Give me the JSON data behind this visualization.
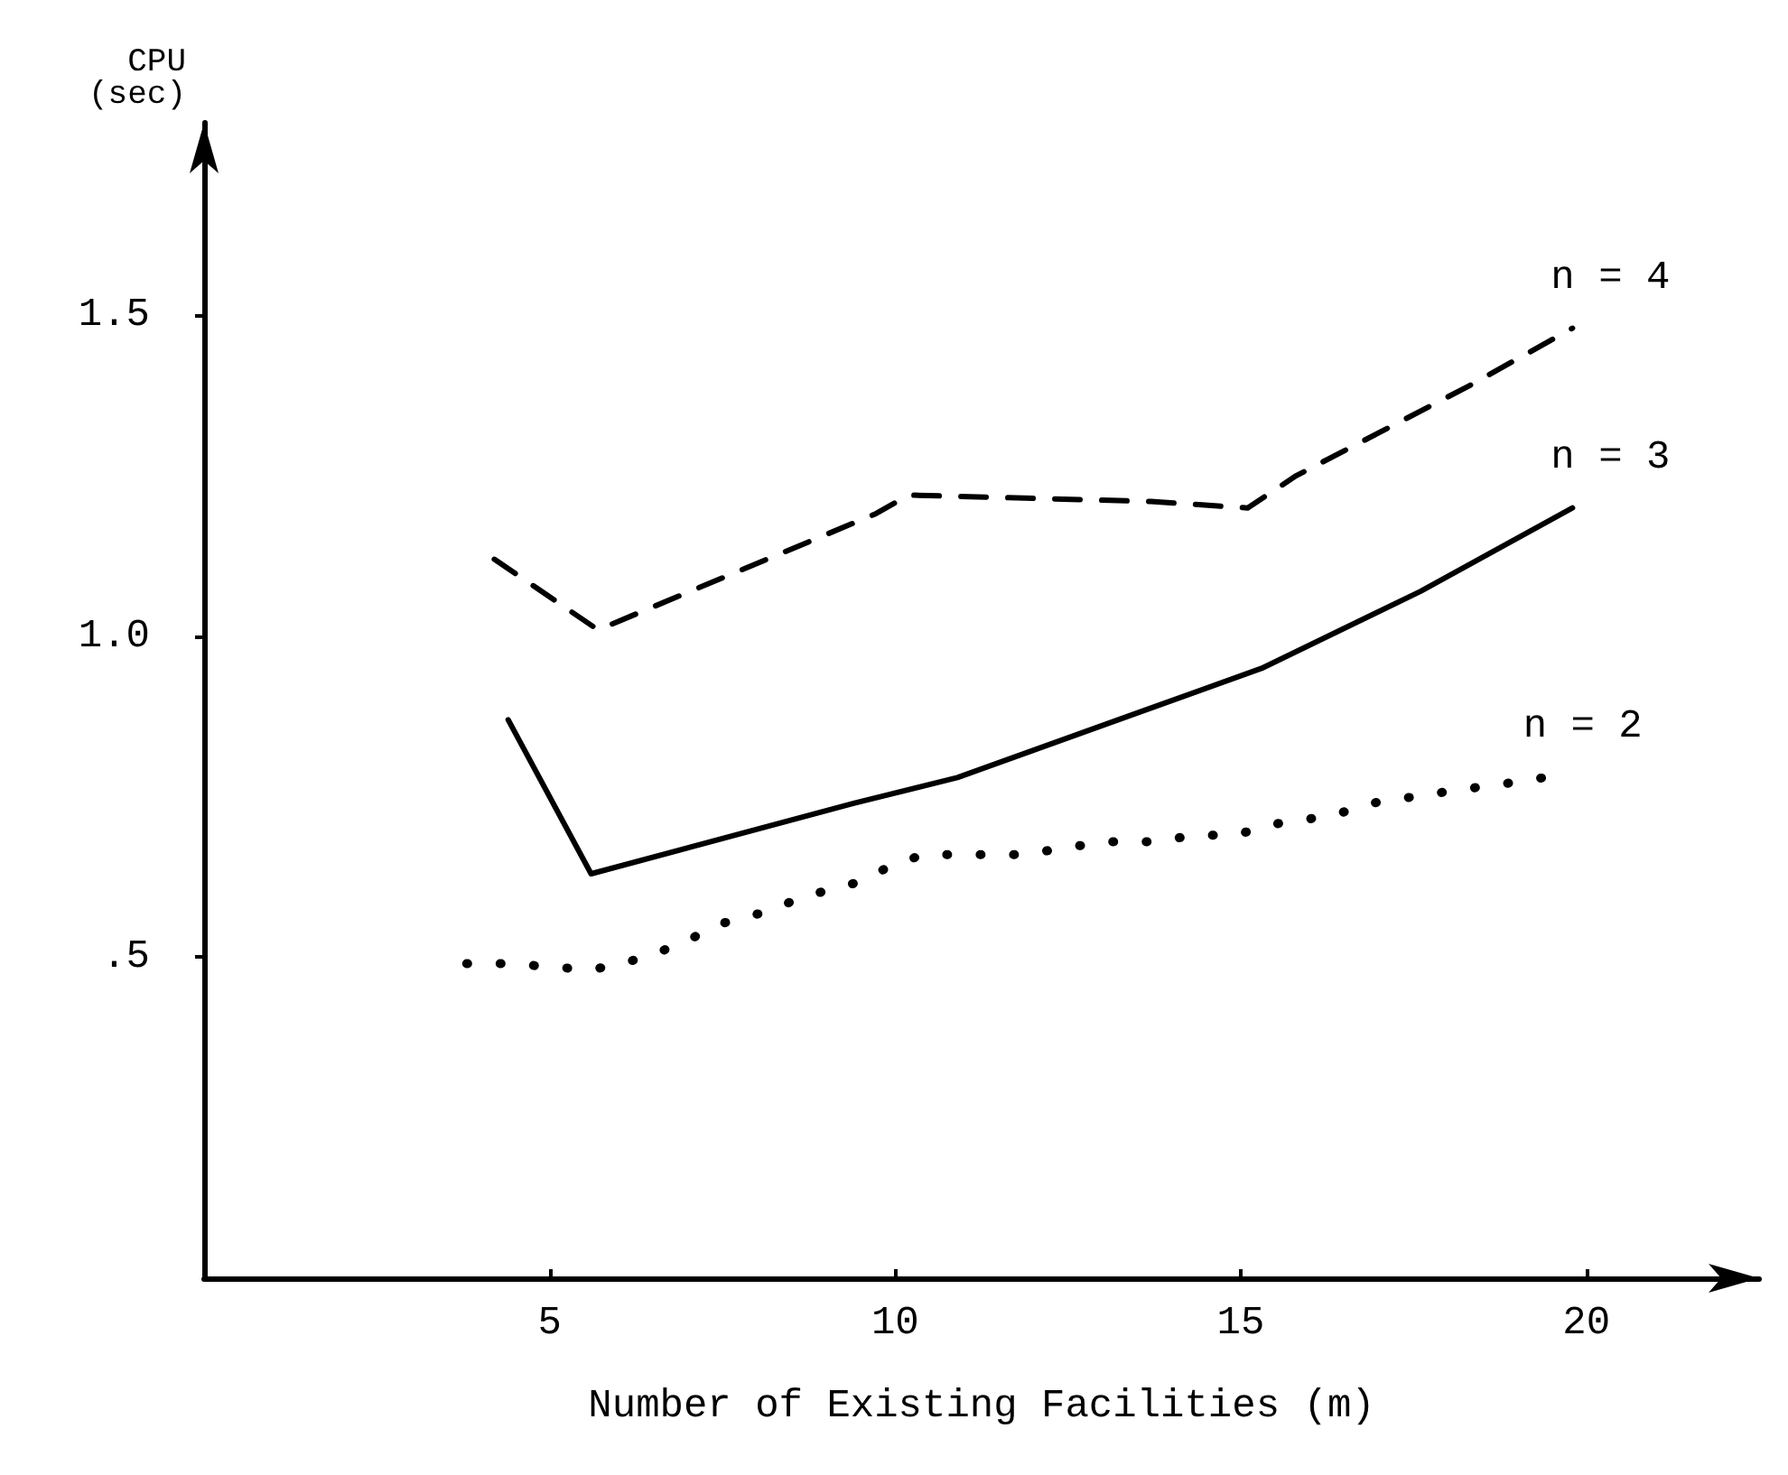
{
  "chart_data": {
    "type": "line",
    "xlabel": "Number of Existing Facilities (m)",
    "ylabel": "CPU\n(sec)",
    "xlim": [
      0,
      22.5
    ],
    "xticks": [
      5,
      10,
      15,
      20
    ],
    "ylim": [
      0,
      1.8
    ],
    "yticks": [
      {
        "value": 0.5,
        "label": ".5"
      },
      {
        "value": 1,
        "label": "1.0"
      },
      1.5
    ],
    "grid": false,
    "legend": false,
    "marker": "none",
    "series": [
      {
        "name": "n = 4",
        "color": "#000000",
        "line_style": "dashed",
        "x": [
          4.2,
          5.7,
          9.7,
          10.2,
          13.7,
          15.1,
          15.8,
          18.3,
          19.8
        ],
        "values": [
          1.12,
          1.01,
          1.19,
          1.22,
          1.21,
          1.2,
          1.25,
          1.39,
          1.48
        ]
      },
      {
        "name": "n = 3",
        "color": "#000000",
        "line_style": "solid",
        "x": [
          4.4,
          5.6,
          9.4,
          10.9,
          15.3,
          17.6,
          19.8
        ],
        "values": [
          0.87,
          0.63,
          0.74,
          0.78,
          0.95,
          1.07,
          1.2
        ]
      },
      {
        "name": "n = 2",
        "color": "#000000",
        "line_style": "dotted",
        "x": [
          3.8,
          4.4,
          5.05,
          5.6,
          6.2,
          6.9,
          7.4,
          8.1,
          8.7,
          9.4,
          9.9,
          10.4,
          11.2,
          11.9,
          12.4,
          13.1,
          13.8,
          14.3,
          14.9,
          15.6,
          16.3,
          16.9,
          17.5,
          18.1,
          18.8,
          19.4
        ],
        "values": [
          0.49,
          0.49,
          0.485,
          0.48,
          0.495,
          0.52,
          0.55,
          0.57,
          0.595,
          0.615,
          0.64,
          0.66,
          0.66,
          0.66,
          0.67,
          0.68,
          0.68,
          0.69,
          0.69,
          0.71,
          0.72,
          0.74,
          0.75,
          0.76,
          0.77,
          0.78
        ]
      }
    ]
  }
}
